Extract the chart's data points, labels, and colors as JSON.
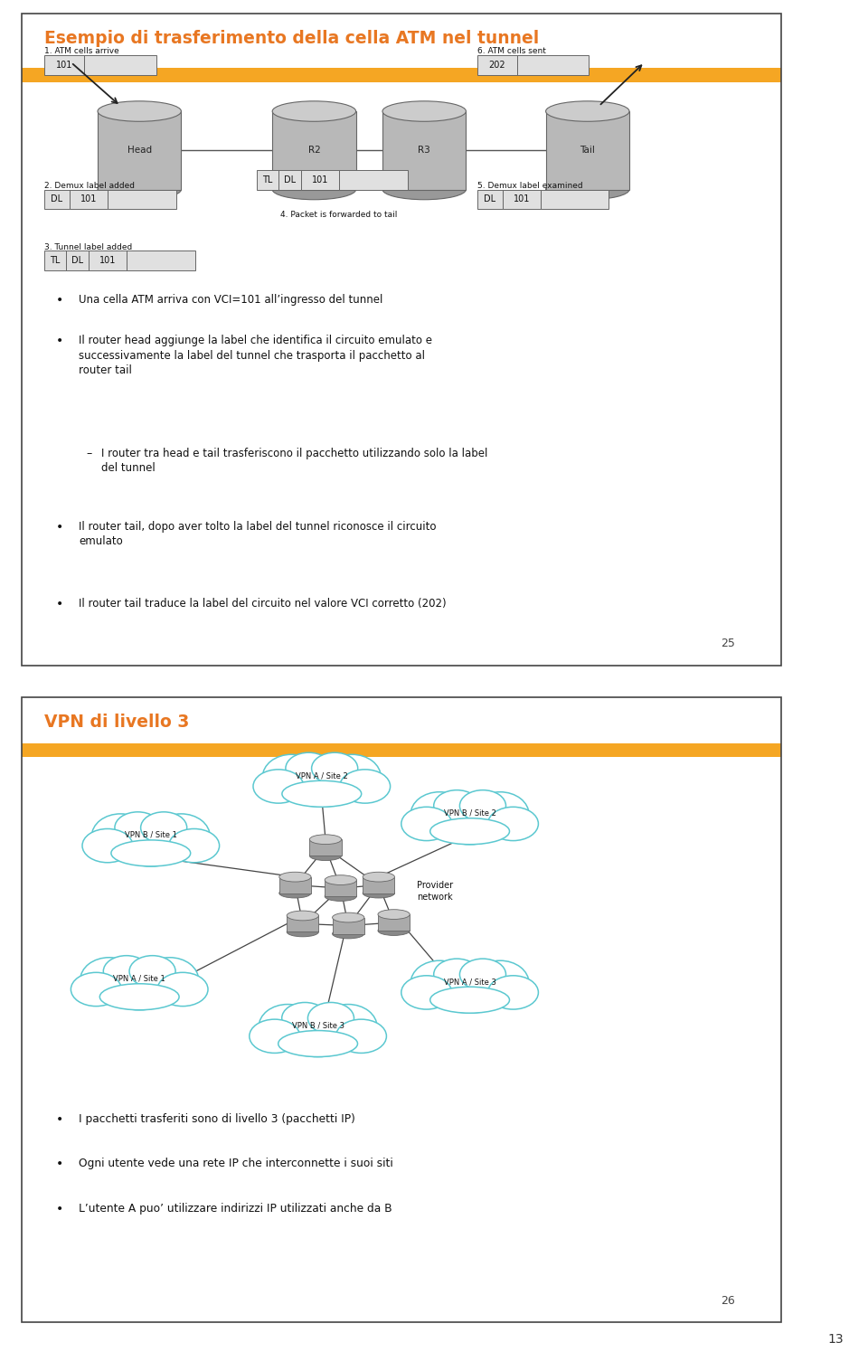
{
  "slide1_title": "Esempio di trasferimento della cella ATM nel tunnel",
  "slide1_title_color": "#E87722",
  "orange_bar_color": "#F5A623",
  "slide1_page": "25",
  "slide2_title": "VPN di livello 3",
  "slide2_title_color": "#E87722",
  "slide2_page": "26",
  "slide2_bullets": [
    "I pacchetti trasferiti sono di livello 3 (pacchetti IP)",
    "Ogni utente vede una rete IP che interconnette i suoi siti",
    "L’utente A puo’ utilizzare indirizzi IP utilizzati anche da B"
  ],
  "page_number": "13",
  "router_fill": "#b8b8b8",
  "router_edge": "#666666",
  "router_top_fill": "#cccccc",
  "router_bot_fill": "#999999",
  "label_box_fill": "#e0e0e0",
  "label_box_edge": "#666666",
  "cloud_color": "#5bc8d0",
  "node_fill": "#aaaaaa",
  "node_edge": "#666666"
}
